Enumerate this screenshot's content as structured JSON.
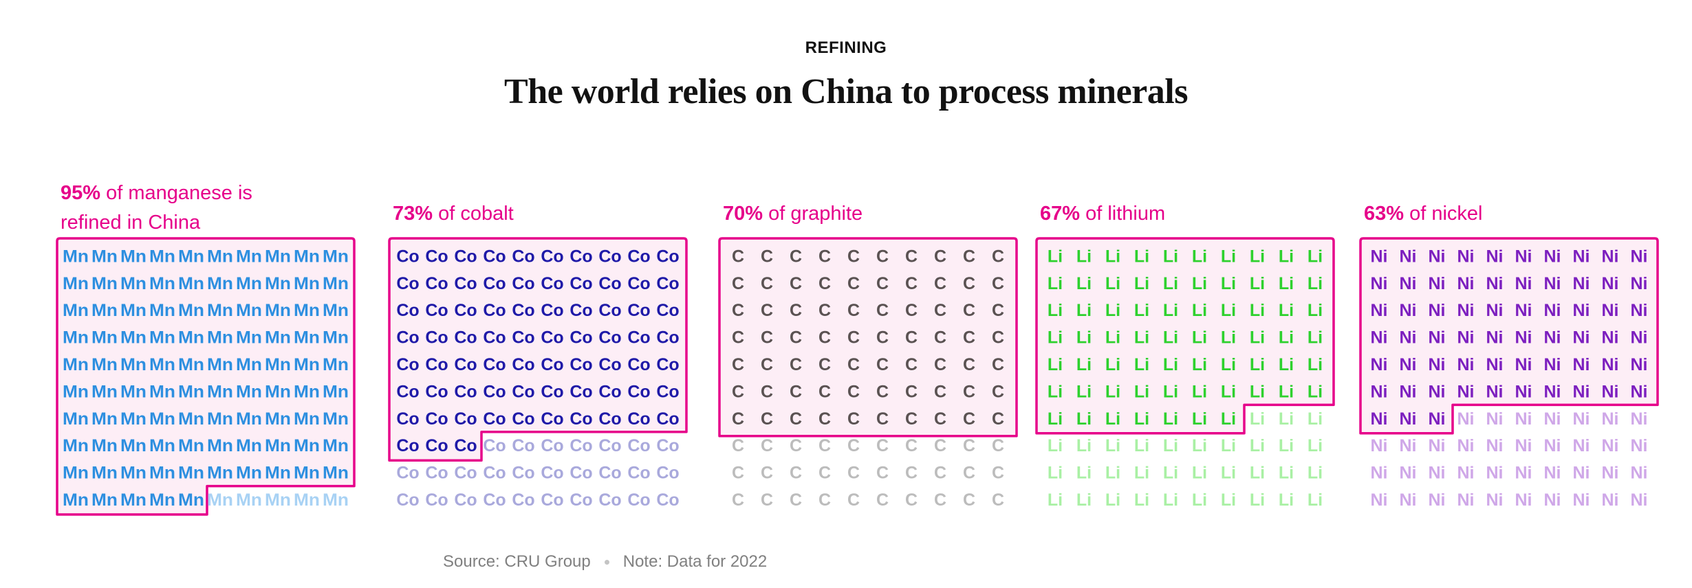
{
  "header": {
    "kicker": "REFINING",
    "title": "The world relies on China to process minerals"
  },
  "footer": {
    "source": "Source: CRU Group",
    "note": "Note: Data for 2022"
  },
  "colors": {
    "highlight_outline": "#e6008a",
    "highlight_fill": "#fdeef6"
  },
  "chart_data": {
    "type": "waffle",
    "grid": {
      "columns": 10,
      "rows": 10,
      "units": 100
    },
    "panels": [
      {
        "symbol": "Mn",
        "mineral": "manganese",
        "percent": 95,
        "pct_label": "95%",
        "label_rest": " of manganese is",
        "label_line2": "refined in China",
        "color_in": "#2d8fe0",
        "color_out": "#a8d2f4"
      },
      {
        "symbol": "Co",
        "mineral": "cobalt",
        "percent": 73,
        "pct_label": "73%",
        "label_rest": " of cobalt",
        "label_line2": "",
        "color_in": "#1f1aa8",
        "color_out": "#a9a9dc"
      },
      {
        "symbol": "C",
        "mineral": "graphite",
        "percent": 70,
        "pct_label": "70%",
        "label_rest": " of graphite",
        "label_line2": "",
        "color_in": "#5a5252",
        "color_out": "#bcbcbc"
      },
      {
        "symbol": "Li",
        "mineral": "lithium",
        "percent": 67,
        "pct_label": "67%",
        "label_rest": " of lithium",
        "label_line2": "",
        "color_in": "#2ed12e",
        "color_out": "#a9f0a4"
      },
      {
        "symbol": "Ni",
        "mineral": "nickel",
        "percent": 63,
        "pct_label": "63%",
        "label_rest": " of nickel",
        "label_line2": "",
        "color_in": "#7c1fbf",
        "color_out": "#cfa7e8"
      }
    ]
  }
}
